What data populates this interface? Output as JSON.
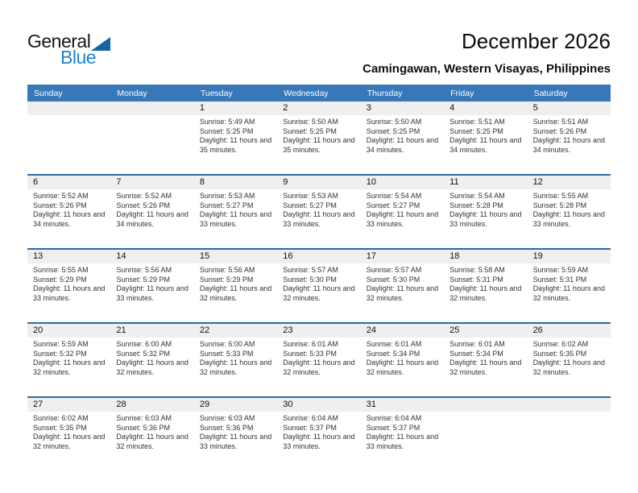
{
  "logo": {
    "general": "General",
    "blue": "Blue"
  },
  "header": {
    "title": "December 2026",
    "location": "Camingawan, Western Visayas, Philippines"
  },
  "labels": {
    "sunrise": "Sunrise:",
    "sunset": "Sunset:",
    "daylight": "Daylight:"
  },
  "weekdays": [
    "Sunday",
    "Monday",
    "Tuesday",
    "Wednesday",
    "Thursday",
    "Friday",
    "Saturday"
  ],
  "colors": {
    "header_blue": "#3878b8",
    "row_divider_blue": "#2d6ca2",
    "day_band_gray": "#efefef",
    "logo_blue": "#1b82d1",
    "logo_triangle": "#1166a6"
  },
  "weeks": [
    [
      null,
      null,
      {
        "day": "1",
        "sunrise": "5:49 AM",
        "sunset": "5:25 PM",
        "daylight": "11 hours and 35 minutes."
      },
      {
        "day": "2",
        "sunrise": "5:50 AM",
        "sunset": "5:25 PM",
        "daylight": "11 hours and 35 minutes."
      },
      {
        "day": "3",
        "sunrise": "5:50 AM",
        "sunset": "5:25 PM",
        "daylight": "11 hours and 34 minutes."
      },
      {
        "day": "4",
        "sunrise": "5:51 AM",
        "sunset": "5:25 PM",
        "daylight": "11 hours and 34 minutes."
      },
      {
        "day": "5",
        "sunrise": "5:51 AM",
        "sunset": "5:26 PM",
        "daylight": "11 hours and 34 minutes."
      }
    ],
    [
      {
        "day": "6",
        "sunrise": "5:52 AM",
        "sunset": "5:26 PM",
        "daylight": "11 hours and 34 minutes."
      },
      {
        "day": "7",
        "sunrise": "5:52 AM",
        "sunset": "5:26 PM",
        "daylight": "11 hours and 34 minutes."
      },
      {
        "day": "8",
        "sunrise": "5:53 AM",
        "sunset": "5:27 PM",
        "daylight": "11 hours and 33 minutes."
      },
      {
        "day": "9",
        "sunrise": "5:53 AM",
        "sunset": "5:27 PM",
        "daylight": "11 hours and 33 minutes."
      },
      {
        "day": "10",
        "sunrise": "5:54 AM",
        "sunset": "5:27 PM",
        "daylight": "11 hours and 33 minutes."
      },
      {
        "day": "11",
        "sunrise": "5:54 AM",
        "sunset": "5:28 PM",
        "daylight": "11 hours and 33 minutes."
      },
      {
        "day": "12",
        "sunrise": "5:55 AM",
        "sunset": "5:28 PM",
        "daylight": "11 hours and 33 minutes."
      }
    ],
    [
      {
        "day": "13",
        "sunrise": "5:55 AM",
        "sunset": "5:29 PM",
        "daylight": "11 hours and 33 minutes."
      },
      {
        "day": "14",
        "sunrise": "5:56 AM",
        "sunset": "5:29 PM",
        "daylight": "11 hours and 33 minutes."
      },
      {
        "day": "15",
        "sunrise": "5:56 AM",
        "sunset": "5:29 PM",
        "daylight": "11 hours and 32 minutes."
      },
      {
        "day": "16",
        "sunrise": "5:57 AM",
        "sunset": "5:30 PM",
        "daylight": "11 hours and 32 minutes."
      },
      {
        "day": "17",
        "sunrise": "5:57 AM",
        "sunset": "5:30 PM",
        "daylight": "11 hours and 32 minutes."
      },
      {
        "day": "18",
        "sunrise": "5:58 AM",
        "sunset": "5:31 PM",
        "daylight": "11 hours and 32 minutes."
      },
      {
        "day": "19",
        "sunrise": "5:59 AM",
        "sunset": "5:31 PM",
        "daylight": "11 hours and 32 minutes."
      }
    ],
    [
      {
        "day": "20",
        "sunrise": "5:59 AM",
        "sunset": "5:32 PM",
        "daylight": "11 hours and 32 minutes."
      },
      {
        "day": "21",
        "sunrise": "6:00 AM",
        "sunset": "5:32 PM",
        "daylight": "11 hours and 32 minutes."
      },
      {
        "day": "22",
        "sunrise": "6:00 AM",
        "sunset": "5:33 PM",
        "daylight": "11 hours and 32 minutes."
      },
      {
        "day": "23",
        "sunrise": "6:01 AM",
        "sunset": "5:33 PM",
        "daylight": "11 hours and 32 minutes."
      },
      {
        "day": "24",
        "sunrise": "6:01 AM",
        "sunset": "5:34 PM",
        "daylight": "11 hours and 32 minutes."
      },
      {
        "day": "25",
        "sunrise": "6:01 AM",
        "sunset": "5:34 PM",
        "daylight": "11 hours and 32 minutes."
      },
      {
        "day": "26",
        "sunrise": "6:02 AM",
        "sunset": "5:35 PM",
        "daylight": "11 hours and 32 minutes."
      }
    ],
    [
      {
        "day": "27",
        "sunrise": "6:02 AM",
        "sunset": "5:35 PM",
        "daylight": "11 hours and 32 minutes."
      },
      {
        "day": "28",
        "sunrise": "6:03 AM",
        "sunset": "5:36 PM",
        "daylight": "11 hours and 32 minutes."
      },
      {
        "day": "29",
        "sunrise": "6:03 AM",
        "sunset": "5:36 PM",
        "daylight": "11 hours and 33 minutes."
      },
      {
        "day": "30",
        "sunrise": "6:04 AM",
        "sunset": "5:37 PM",
        "daylight": "11 hours and 33 minutes."
      },
      {
        "day": "31",
        "sunrise": "6:04 AM",
        "sunset": "5:37 PM",
        "daylight": "11 hours and 33 minutes."
      },
      null,
      null
    ]
  ]
}
